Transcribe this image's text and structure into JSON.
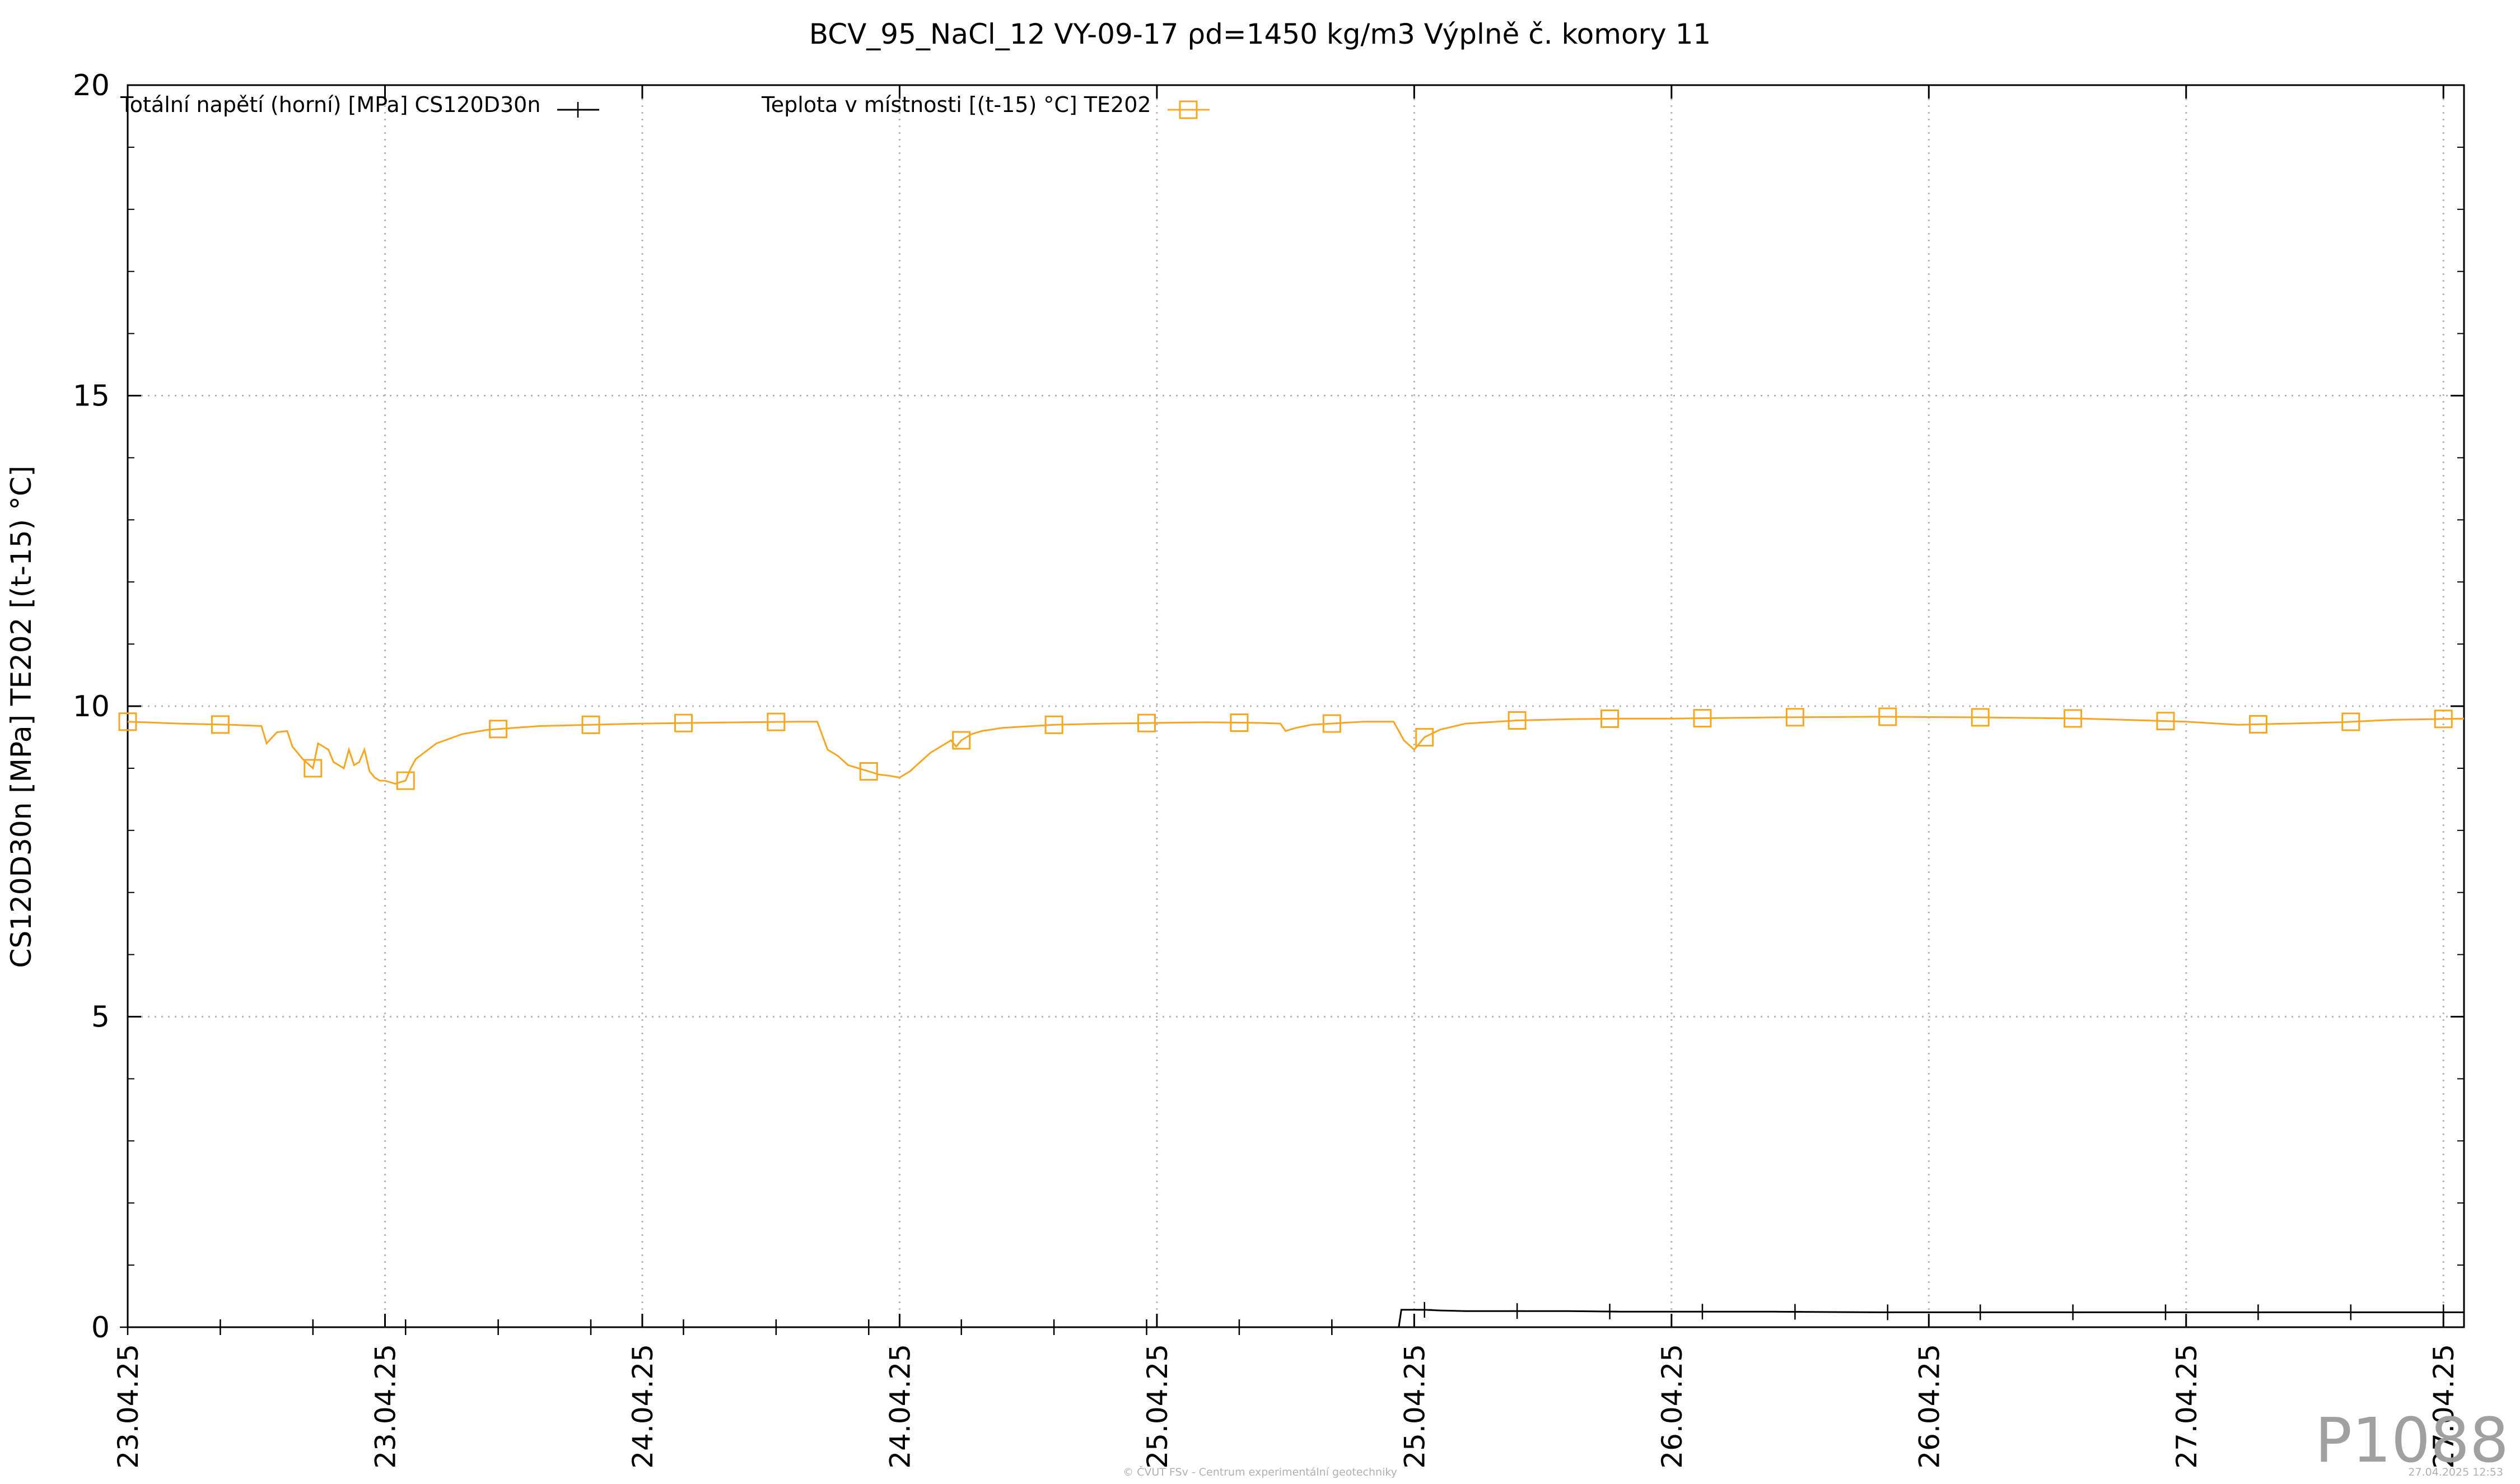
{
  "chart_data": {
    "type": "line",
    "title": "BCV_95_NaCl_12 VY-09-17  ρd=1450 kg/m3 Výplně č. komory 11",
    "ylabel": "CS120D30n [MPa] TE202 [(t-15) °C]",
    "xlabel": "",
    "ylim": [
      0,
      20
    ],
    "xlim": [
      0,
      4.54
    ],
    "y_ticks": [
      0,
      5,
      10,
      15,
      20
    ],
    "y_tick_labels": [
      "0",
      "5",
      "10",
      "15",
      "20"
    ],
    "x_ticks": [
      0,
      0.5,
      1,
      1.5,
      2,
      2.5,
      3,
      3.5,
      4,
      4.5
    ],
    "x_tick_labels": [
      "23.04.25",
      "23.04.25",
      "24.04.25",
      "24.04.25",
      "25.04.25",
      "25.04.25",
      "26.04.25",
      "26.04.25",
      "27.04.25",
      "27.04.25"
    ],
    "grid": true,
    "legend_placement": "top",
    "series": [
      {
        "name": "Totální napětí (horní) [MPa] CS120D30n",
        "color": "#000000",
        "marker": "plus",
        "x": [
          0,
          2.47,
          2.475,
          2.48,
          2.52,
          2.55,
          2.6,
          2.7,
          2.8,
          2.9,
          3.0,
          3.1,
          3.2,
          3.4,
          3.6,
          3.8,
          4.0,
          4.2,
          4.4,
          4.54
        ],
        "y": [
          0,
          0,
          0.28,
          0.28,
          0.28,
          0.27,
          0.26,
          0.26,
          0.26,
          0.25,
          0.25,
          0.25,
          0.25,
          0.24,
          0.24,
          0.24,
          0.24,
          0.24,
          0.24,
          0.24
        ],
        "marker_x": [
          0,
          0.18,
          0.36,
          0.54,
          0.72,
          0.9,
          1.08,
          1.26,
          1.44,
          1.62,
          1.8,
          1.98,
          2.16,
          2.34,
          2.52,
          2.7,
          2.88,
          3.06,
          3.24,
          3.42,
          3.6,
          3.78,
          3.96,
          4.14,
          4.32,
          4.5
        ]
      },
      {
        "name": "Teplota v místnosti [(t-15) °C] TE202",
        "color": "#f5a623",
        "marker": "square",
        "x": [
          0,
          0.1,
          0.2,
          0.26,
          0.27,
          0.29,
          0.31,
          0.32,
          0.34,
          0.36,
          0.37,
          0.39,
          0.4,
          0.42,
          0.43,
          0.44,
          0.45,
          0.46,
          0.47,
          0.48,
          0.49,
          0.5,
          0.52,
          0.54,
          0.55,
          0.56,
          0.6,
          0.65,
          0.7,
          0.8,
          0.9,
          1.0,
          1.1,
          1.2,
          1.3,
          1.34,
          1.36,
          1.38,
          1.4,
          1.42,
          1.44,
          1.46,
          1.48,
          1.5,
          1.52,
          1.54,
          1.56,
          1.58,
          1.6,
          1.61,
          1.62,
          1.64,
          1.66,
          1.7,
          1.8,
          1.9,
          2.0,
          2.1,
          2.2,
          2.24,
          2.25,
          2.27,
          2.3,
          2.4,
          2.46,
          2.48,
          2.5,
          2.52,
          2.55,
          2.6,
          2.7,
          2.8,
          2.9,
          3.0,
          3.2,
          3.4,
          3.6,
          3.8,
          4.0,
          4.1,
          4.2,
          4.3,
          4.4,
          4.54
        ],
        "y": [
          9.75,
          9.72,
          9.7,
          9.68,
          9.4,
          9.58,
          9.6,
          9.35,
          9.15,
          9.0,
          9.4,
          9.3,
          9.1,
          9.0,
          9.3,
          9.05,
          9.1,
          9.3,
          8.95,
          8.85,
          8.8,
          8.8,
          8.75,
          8.8,
          9.0,
          9.15,
          9.4,
          9.55,
          9.62,
          9.68,
          9.7,
          9.72,
          9.73,
          9.74,
          9.75,
          9.75,
          9.3,
          9.2,
          9.05,
          9.0,
          8.95,
          8.9,
          8.88,
          8.85,
          8.95,
          9.1,
          9.25,
          9.35,
          9.45,
          9.35,
          9.45,
          9.55,
          9.6,
          9.65,
          9.7,
          9.72,
          9.73,
          9.74,
          9.73,
          9.72,
          9.6,
          9.65,
          9.7,
          9.75,
          9.75,
          9.45,
          9.3,
          9.5,
          9.62,
          9.72,
          9.77,
          9.79,
          9.8,
          9.8,
          9.82,
          9.83,
          9.82,
          9.8,
          9.75,
          9.7,
          9.72,
          9.74,
          9.78,
          9.8
        ],
        "marker_x": [
          0,
          0.18,
          0.36,
          0.54,
          0.72,
          0.9,
          1.08,
          1.26,
          1.44,
          1.62,
          1.8,
          1.98,
          2.16,
          2.34,
          2.52,
          2.7,
          2.88,
          3.06,
          3.24,
          3.42,
          3.6,
          3.78,
          3.96,
          4.14,
          4.32,
          4.5
        ]
      }
    ]
  },
  "watermark": "P1088",
  "footer": {
    "credit": "© ČVUT FSv - Centrum experimentální geotechniky",
    "timestamp": "27.04.2025 12:53"
  }
}
